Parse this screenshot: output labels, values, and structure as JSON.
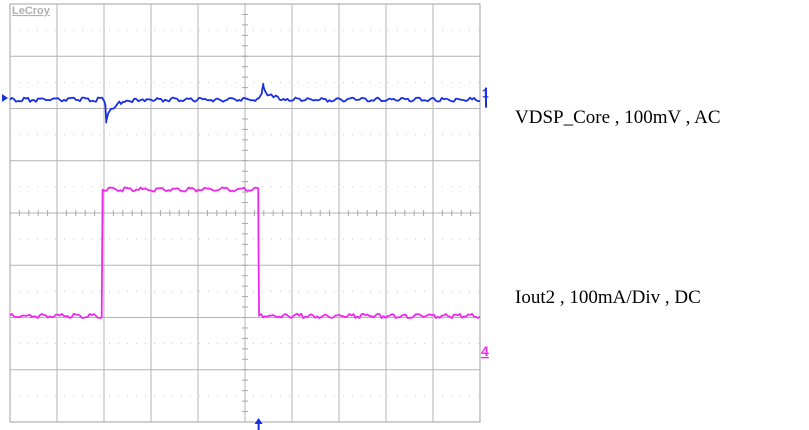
{
  "scope": {
    "brand": "LeCroy",
    "grid": {
      "divisions_x": 10,
      "divisions_y": 8,
      "center_ticks": true,
      "dotted_minor": true
    }
  },
  "channels": [
    {
      "id": "ch1",
      "marker": "1",
      "label": "VDSP_Core , 100mV , AC",
      "color": "#1a2fe0"
    },
    {
      "id": "ch2",
      "marker": "4",
      "label": "Iout2 , 100mA/Div , DC",
      "color": "#ee28ee"
    }
  ],
  "chart_data": {
    "type": "line",
    "title": "",
    "xlabel": "",
    "ylabel": "",
    "xlim": [
      0,
      10
    ],
    "ylim": [
      -4,
      4
    ],
    "grid": true,
    "x_unit": "divisions",
    "y_unit": "divisions",
    "series": [
      {
        "name": "VDSP_Core , 100mV , AC",
        "x": [
          0,
          2.0,
          2.03,
          2.05,
          2.09,
          2.15,
          2.25,
          2.4,
          2.6,
          3.0,
          5.3,
          5.36,
          5.39,
          5.42,
          5.48,
          5.56,
          5.7,
          5.9,
          6.2,
          10.0
        ],
        "y": [
          2.17,
          2.17,
          2.05,
          1.73,
          1.88,
          1.99,
          2.07,
          2.12,
          2.15,
          2.17,
          2.17,
          2.33,
          2.47,
          2.38,
          2.29,
          2.23,
          2.2,
          2.18,
          2.17,
          2.17
        ]
      },
      {
        "name": "Iout2 , 100mA/Div , DC",
        "x": [
          0,
          1.95,
          1.96,
          1.97,
          5.28,
          5.29,
          5.3,
          10.0
        ],
        "y": [
          -1.97,
          -1.97,
          -0.9,
          0.45,
          0.45,
          -0.9,
          -1.97,
          -1.97
        ]
      }
    ]
  }
}
